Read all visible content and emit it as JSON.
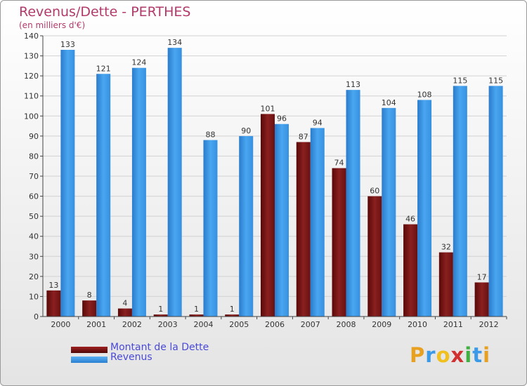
{
  "chart_data": {
    "type": "bar",
    "title": "Revenus/Dette - PERTHES",
    "subtitle": "(en milliers d'€)",
    "categories": [
      "2000",
      "2001",
      "2002",
      "2003",
      "2004",
      "2005",
      "2006",
      "2007",
      "2008",
      "2009",
      "2010",
      "2011",
      "2012"
    ],
    "series": [
      {
        "name": "Montant de la Dette",
        "color": "#7a1010",
        "values": [
          13,
          8,
          4,
          1,
          1,
          1,
          101,
          87,
          74,
          60,
          46,
          32,
          17
        ]
      },
      {
        "name": "Revenus",
        "color": "#3a9ae8",
        "values": [
          133,
          121,
          124,
          134,
          88,
          90,
          96,
          94,
          113,
          104,
          108,
          115,
          115
        ]
      }
    ],
    "ylim": [
      0,
      140
    ],
    "yticks": [
      0,
      10,
      20,
      30,
      40,
      50,
      60,
      70,
      80,
      90,
      100,
      110,
      120,
      130,
      140
    ],
    "grid": true,
    "legend_position": "bottom-left"
  },
  "logo": {
    "letters": [
      {
        "ch": "P",
        "color": "#e8a020"
      },
      {
        "ch": "r",
        "color": "#3a9ae8"
      },
      {
        "ch": "o",
        "color": "#f0c020"
      },
      {
        "ch": "x",
        "color": "#d03030"
      },
      {
        "ch": "i",
        "color": "#40b040"
      },
      {
        "ch": "t",
        "color": "#3a9ae8"
      },
      {
        "ch": "i",
        "color": "#e8a020"
      }
    ]
  }
}
